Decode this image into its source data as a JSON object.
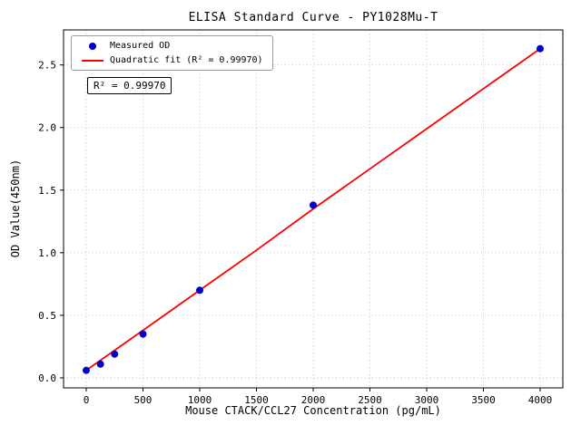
{
  "chart_data": {
    "type": "scatter",
    "title": "ELISA Standard Curve - PY1028Mu-T",
    "xlabel": "Mouse CTACK/CCL27 Concentration (pg/mL)",
    "ylabel": "OD Value(450nm)",
    "xlim": [
      -200,
      4200
    ],
    "ylim": [
      -0.08,
      2.78
    ],
    "xticks": [
      "0",
      "500",
      "1000",
      "1500",
      "2000",
      "2500",
      "3000",
      "3500",
      "4000"
    ],
    "yticks": [
      "0.0",
      "0.5",
      "1.0",
      "1.5",
      "2.0",
      "2.5"
    ],
    "grid": true,
    "grid_style": "dotted",
    "legend_position": "upper left",
    "annotation": "R² = 0.99970",
    "colors": {
      "points": "#0000cd",
      "fit": "#ff0000",
      "grid": "#b8b8b8",
      "frame": "#000000",
      "background": "#ffffff"
    },
    "series": [
      {
        "name": "Measured OD",
        "type": "scatter",
        "color": "#0000cd",
        "x": [
          0,
          125,
          250,
          500,
          1000,
          2000,
          4000
        ],
        "y": [
          0.06,
          0.11,
          0.19,
          0.35,
          0.7,
          1.38,
          2.63
        ]
      },
      {
        "name": "Quadratic fit (R² = 0.99970)",
        "type": "line",
        "color": "#ff0000",
        "x": [
          0,
          500,
          1000,
          1500,
          2000,
          2500,
          3000,
          3500,
          4000
        ],
        "y": [
          0.06,
          0.38,
          0.7,
          1.02,
          1.35,
          1.67,
          1.99,
          2.31,
          2.63
        ]
      }
    ]
  }
}
